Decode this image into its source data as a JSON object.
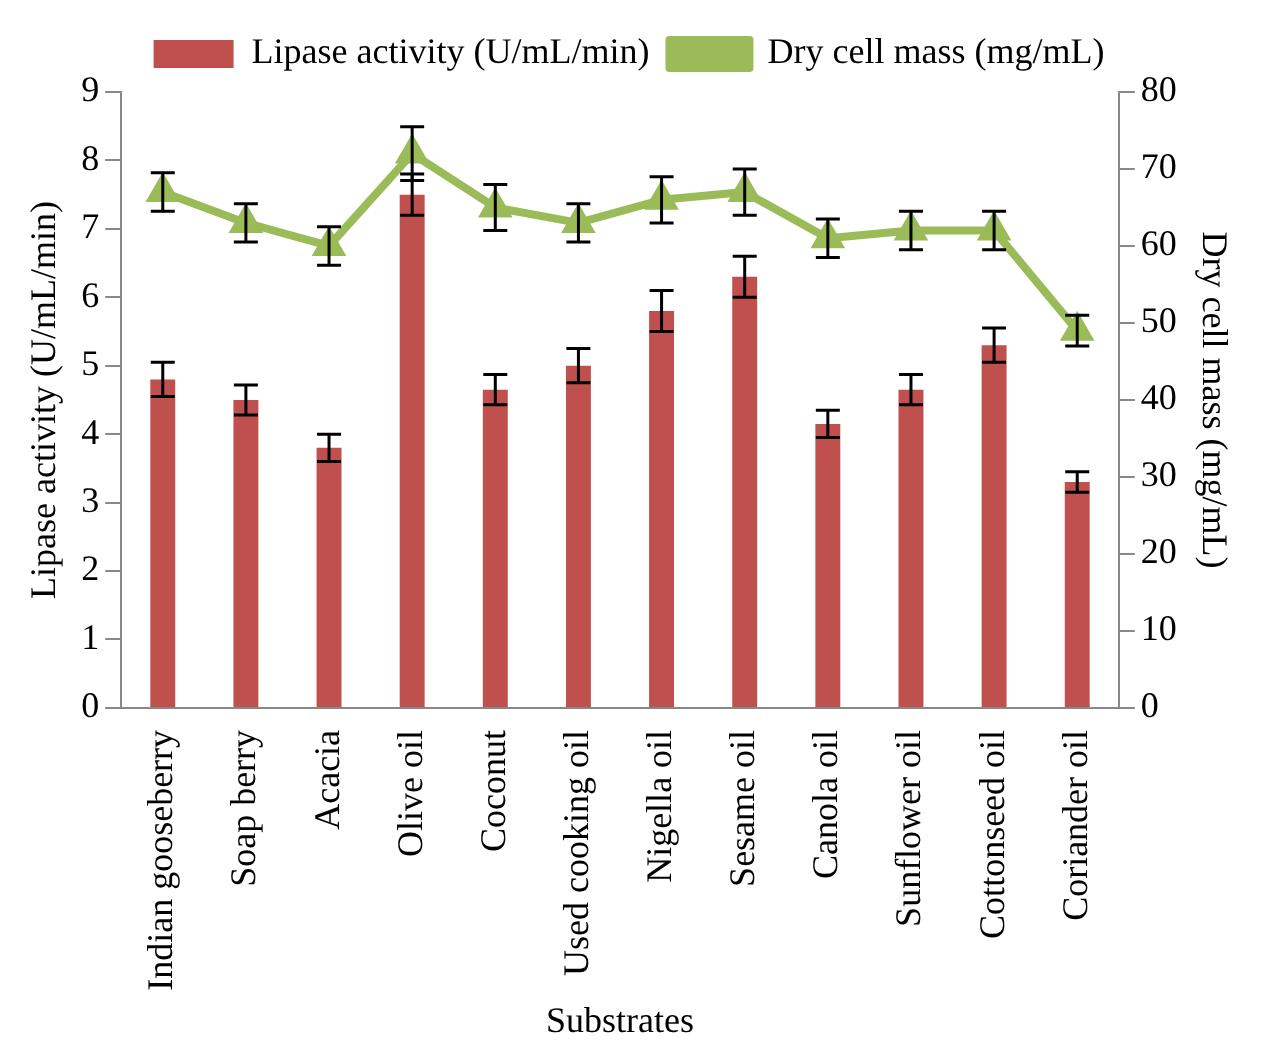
{
  "chart_data": {
    "type": "bar",
    "xlabel": "Substrates",
    "ylabel": "Lipase activity (U/mL/min)",
    "y2label": "Dry cell mass (mg/mL)",
    "categories": [
      "Indian gooseberry",
      "Soap berry",
      "Acacia",
      "Olive oil",
      "Coconut",
      "Used cooking oil",
      "Nigella oil",
      "Sesame oil",
      "Canola oil",
      "Sunflower oil",
      "Cottonseed oil",
      "Coriander oil"
    ],
    "series": [
      {
        "name": "Lipase activity (U/mL/min)",
        "color": "#c0504d",
        "values": [
          4.8,
          4.5,
          3.8,
          7.5,
          4.65,
          5.0,
          5.8,
          6.3,
          4.15,
          4.65,
          5.3,
          3.3
        ],
        "errors": [
          0.25,
          0.22,
          0.2,
          0.3,
          0.22,
          0.25,
          0.3,
          0.3,
          0.2,
          0.22,
          0.25,
          0.15
        ]
      },
      {
        "name": "Dry cell mass (mg/mL)",
        "type": "line",
        "axis": "y2",
        "color": "#9bbb59",
        "marker": "triangle",
        "values": [
          67,
          63,
          60,
          72,
          65,
          63,
          66,
          67,
          61,
          62,
          62,
          49
        ],
        "errors": [
          2.5,
          2.5,
          2.5,
          3.5,
          3,
          2.5,
          3,
          3,
          2.5,
          2.5,
          2.5,
          2
        ]
      }
    ],
    "ylim": [
      0,
      9
    ],
    "yticks": [
      0,
      1,
      2,
      3,
      4,
      5,
      6,
      7,
      8,
      9
    ],
    "y2lim": [
      0,
      80
    ],
    "y2ticks": [
      0,
      10,
      20,
      30,
      40,
      50,
      60,
      70,
      80
    ],
    "grid": false,
    "legend": "top"
  }
}
